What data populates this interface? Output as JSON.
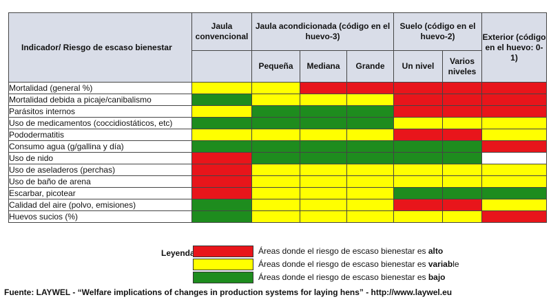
{
  "colors": {
    "red": "#e8151b",
    "yellow": "#ffff00",
    "green": "#1e8c1e",
    "white": "#ffffff"
  },
  "header": {
    "indicator": "Indicador/ Riesgo de escaso bienestar",
    "conventional": "Jaula convencional",
    "enriched": "Jaula acondicionada (código en el huevo-3)",
    "equals": "=",
    "floor": "Suelo (código en el huevo-2)",
    "outdoor": "Exterior (código en el huevo: 0-1)",
    "small": "Pequeña",
    "medium": "Mediana",
    "large": "Grande",
    "one_level": "Un nivel",
    "multi_level": "Varios niveles"
  },
  "rows": [
    {
      "label": "Mortalidad (general %)",
      "cells": [
        "yellow",
        "yellow",
        "red",
        "red",
        "red",
        "red",
        "red"
      ]
    },
    {
      "label": "Mortalidad debida a picaje/canibalismo",
      "cells": [
        "green",
        "yellow",
        "yellow",
        "yellow",
        "red",
        "red",
        "red"
      ]
    },
    {
      "label": "Parásitos internos",
      "cells": [
        "yellow",
        "green",
        "green",
        "green",
        "red",
        "red",
        "red"
      ]
    },
    {
      "label": "Uso de medicamentos (coccidiostáticos, etc)",
      "cells": [
        "green",
        "green",
        "green",
        "green",
        "yellow",
        "yellow",
        "yellow"
      ]
    },
    {
      "label": "Pododermatitis",
      "cells": [
        "yellow",
        "yellow",
        "yellow",
        "yellow",
        "red",
        "red",
        "yellow"
      ]
    },
    {
      "label": "Consumo agua (g/gallina y día)",
      "cells": [
        "green",
        "green",
        "green",
        "green",
        "green",
        "green",
        "red"
      ]
    },
    {
      "label": "Uso de nido",
      "cells": [
        "red",
        "green",
        "green",
        "green",
        "green",
        "green",
        "white"
      ]
    },
    {
      "label": "Uso de aseladeros (perchas)",
      "cells": [
        "red",
        "yellow",
        "yellow",
        "yellow",
        "yellow",
        "yellow",
        "yellow"
      ]
    },
    {
      "label": "Uso de baño de arena",
      "cells": [
        "red",
        "yellow",
        "yellow",
        "yellow",
        "yellow",
        "yellow",
        "yellow"
      ]
    },
    {
      "label": "Escarbar, picotear",
      "cells": [
        "red",
        "yellow",
        "yellow",
        "yellow",
        "green",
        "green",
        "green"
      ]
    },
    {
      "label": "Calidad del aire (polvo, emisiones)",
      "cells": [
        "green",
        "yellow",
        "yellow",
        "yellow",
        "red",
        "red",
        "yellow"
      ]
    },
    {
      "label": "Huevos sucios (%)",
      "cells": [
        "green",
        "yellow",
        "yellow",
        "yellow",
        "yellow",
        "yellow",
        "red"
      ]
    }
  ],
  "legend": {
    "title": "Leyenda",
    "items": [
      {
        "color": "red",
        "text": "Áreas donde el riesgo de escaso bienestar es ",
        "bold": "alto"
      },
      {
        "color": "yellow",
        "text": "Áreas donde el riesgo de escaso bienestar es ",
        "bold": "variab",
        "tail": "le"
      },
      {
        "color": "green",
        "text": "Áreas donde el riesgo de escaso bienestar es ",
        "bold": "bajo"
      }
    ]
  },
  "source": "Fuente: LAYWEL - “Welfare implications of changes in production systems for laying hens” - http://www.laywel.eu"
}
